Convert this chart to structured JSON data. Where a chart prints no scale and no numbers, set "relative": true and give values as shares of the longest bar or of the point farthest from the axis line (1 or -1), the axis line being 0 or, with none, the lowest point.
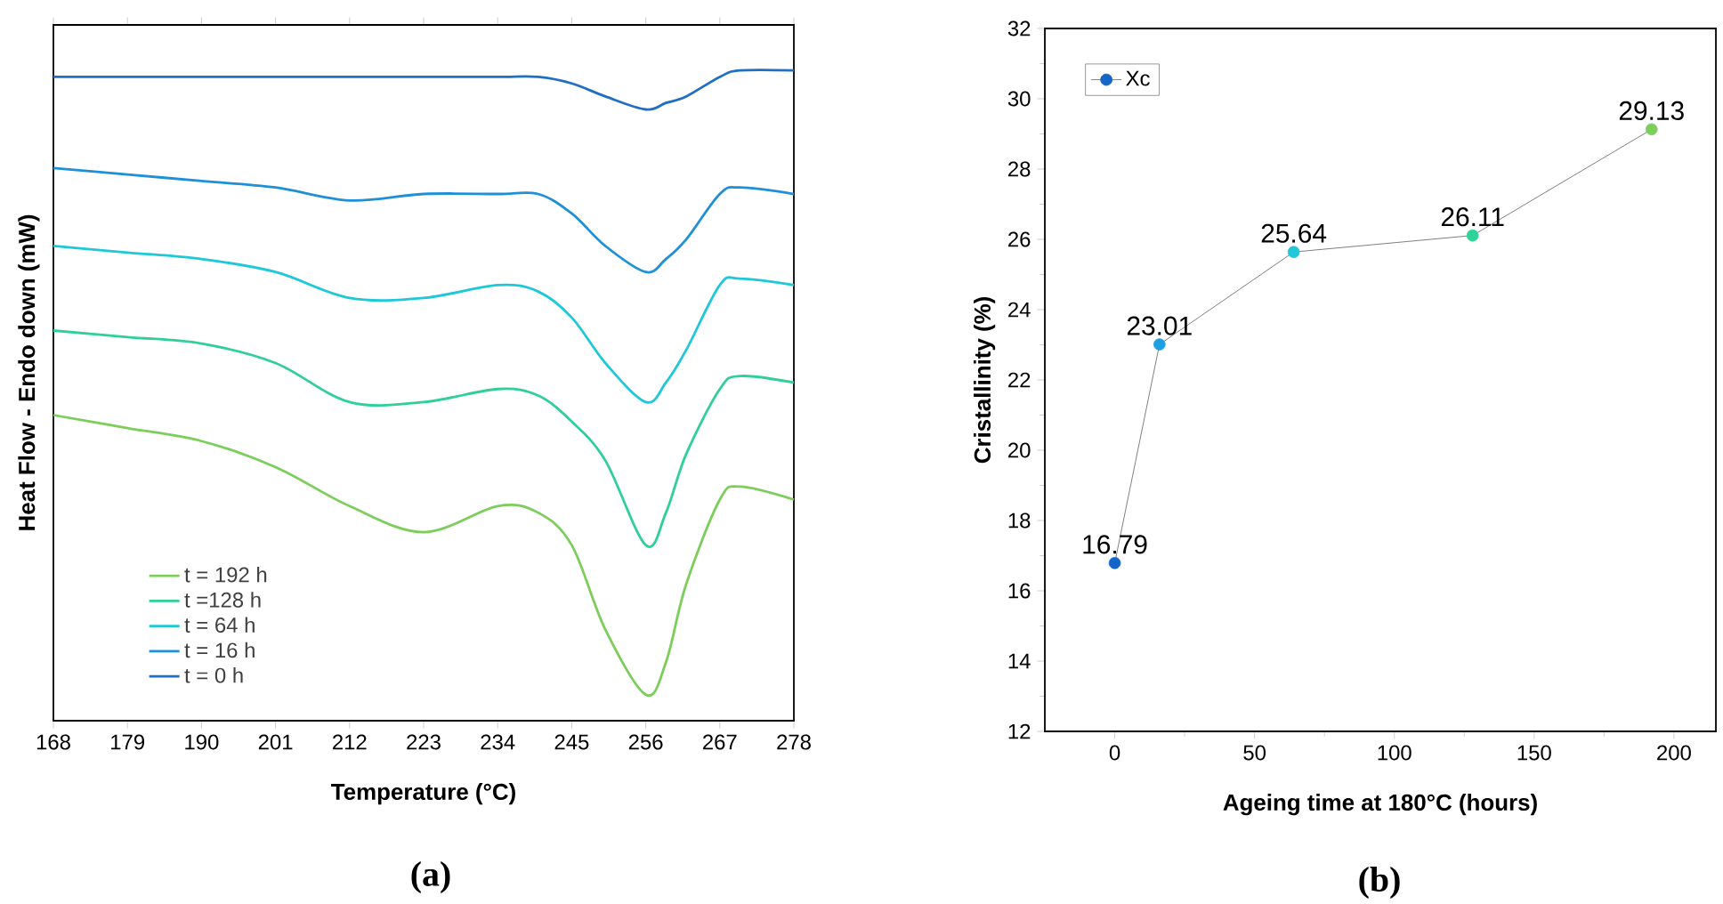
{
  "chart_data": [
    {
      "type": "line",
      "relative": true,
      "xlabel": "Temperature (°C)",
      "ylabel": "Heat Flow - Endo down (mW)",
      "annotations": [
        "(a)"
      ],
      "x": [
        168,
        179,
        190,
        201,
        212,
        223,
        234,
        240,
        245,
        250,
        256,
        259,
        262,
        267,
        270,
        278
      ],
      "xlim": [
        168,
        278
      ],
      "xticks": [
        168,
        179,
        190,
        201,
        212,
        223,
        234,
        245,
        256,
        267,
        278
      ],
      "legend": "bottom left",
      "series": [
        {
          "name": "t = 192 h",
          "color": "#7ccd5a",
          "values": [
            0.47,
            0.45,
            0.43,
            0.39,
            0.33,
            0.29,
            0.33,
            0.32,
            0.27,
            0.14,
            0.04,
            0.09,
            0.21,
            0.34,
            0.36,
            0.34
          ]
        },
        {
          "name": "t =128 h",
          "color": "#2ecf9a",
          "values": [
            0.6,
            0.59,
            0.58,
            0.55,
            0.49,
            0.49,
            0.51,
            0.5,
            0.46,
            0.4,
            0.27,
            0.32,
            0.41,
            0.51,
            0.53,
            0.52
          ]
        },
        {
          "name": "t = 64 h",
          "color": "#1ec8d8",
          "values": [
            0.73,
            0.72,
            0.71,
            0.69,
            0.65,
            0.65,
            0.67,
            0.66,
            0.62,
            0.55,
            0.49,
            0.52,
            0.57,
            0.67,
            0.68,
            0.67
          ]
        },
        {
          "name": "t = 16 h",
          "color": "#1e90d8",
          "values": [
            0.85,
            0.84,
            0.83,
            0.82,
            0.8,
            0.81,
            0.81,
            0.81,
            0.78,
            0.73,
            0.69,
            0.71,
            0.74,
            0.81,
            0.82,
            0.81
          ]
        },
        {
          "name": "t = 0 h",
          "color": "#1f6fc5",
          "values": [
            0.99,
            0.99,
            0.99,
            0.99,
            0.99,
            0.99,
            0.99,
            0.99,
            0.98,
            0.96,
            0.94,
            0.95,
            0.96,
            0.99,
            1.0,
            1.0
          ]
        }
      ]
    },
    {
      "type": "line",
      "xlabel": "Ageing time at 180°C (hours)",
      "ylabel": "Cristallinity (%)",
      "annotations": [
        "(b)"
      ],
      "x": [
        0,
        16,
        64,
        128,
        192
      ],
      "xlim": [
        -25,
        215
      ],
      "xticks": [
        0,
        50,
        100,
        150,
        200
      ],
      "ylim": [
        12,
        32
      ],
      "yticks": [
        12,
        14,
        16,
        18,
        20,
        22,
        24,
        26,
        28,
        30,
        32
      ],
      "marker": "circle",
      "legend": "top left",
      "series": [
        {
          "name": "Xc",
          "color": "#808080",
          "colors": [
            "#1565c8",
            "#1ea0e0",
            "#1ec8d8",
            "#2ed39a",
            "#7ccd5a"
          ],
          "values": [
            16.79,
            23.01,
            25.64,
            26.11,
            29.13
          ],
          "value_labels": [
            "16.79",
            "23.01",
            "25.64",
            "26.11",
            "29.13"
          ]
        }
      ]
    }
  ]
}
